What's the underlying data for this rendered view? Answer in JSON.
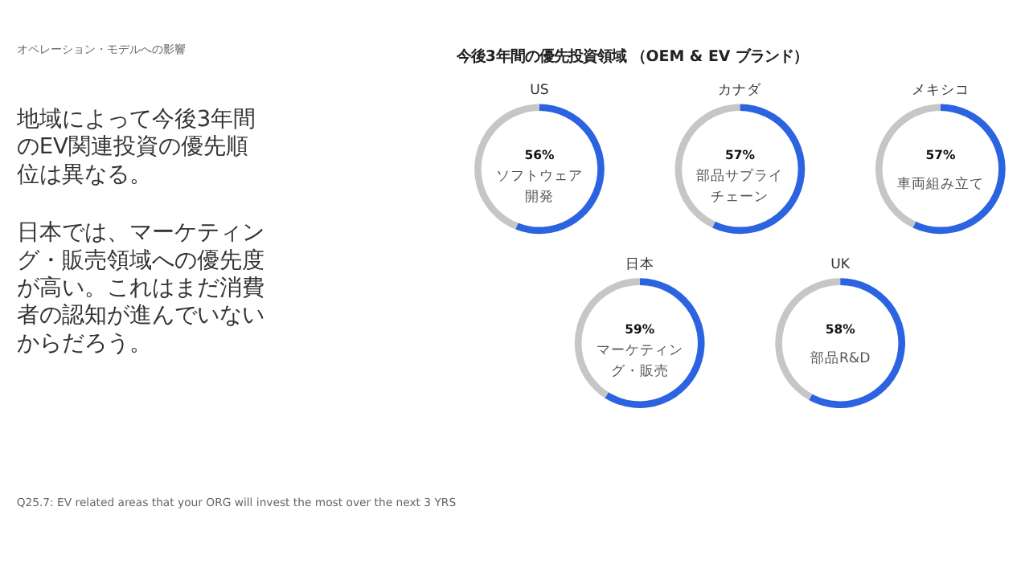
{
  "chart_data": [
    {
      "type": "other",
      "title": "今後3年間の優先投資領域 （OEM & EV ブランド）",
      "subtitle": "オペレーション・モデルへの影響",
      "annotations": [
        "地域によって今後3年間のEV関連投資の優先順位は異なる。",
        "日本では、マーケティング・販売領域への優先度が高い。これはまだ消費者の認知が進んでいないからだろう。",
        "Q25.7: EV related areas that your ORG will invest the most over the next 3 YRS"
      ]
    },
    {
      "type": "donut",
      "title": "US",
      "categories": [
        "ソフトウェア開発",
        null
      ],
      "values": [
        56,
        44
      ],
      "colors": [
        "#2b63e0",
        "#c6c6c6"
      ],
      "value_labels": [
        "56%",
        null
      ]
    },
    {
      "type": "donut",
      "title": "カナダ",
      "categories": [
        "部品サプライチェーン",
        null
      ],
      "values": [
        57,
        43
      ],
      "colors": [
        "#2b63e0",
        "#c6c6c6"
      ],
      "value_labels": [
        "57%",
        null
      ]
    },
    {
      "type": "donut",
      "title": "メキシコ",
      "categories": [
        "車両組み立て",
        null
      ],
      "values": [
        57,
        43
      ],
      "colors": [
        "#2b63e0",
        "#c6c6c6"
      ],
      "value_labels": [
        "57%",
        null
      ]
    },
    {
      "type": "donut",
      "title": "日本",
      "categories": [
        "マーケティング・販売",
        null
      ],
      "values": [
        59,
        41
      ],
      "colors": [
        "#2b63e0",
        "#c6c6c6"
      ],
      "value_labels": [
        "59%",
        null
      ]
    },
    {
      "type": "donut",
      "title": "UK",
      "categories": [
        "部品R&D",
        null
      ],
      "values": [
        58,
        42
      ],
      "colors": [
        "#2b63e0",
        "#c6c6c6"
      ],
      "value_labels": [
        "58%",
        null
      ]
    }
  ]
}
